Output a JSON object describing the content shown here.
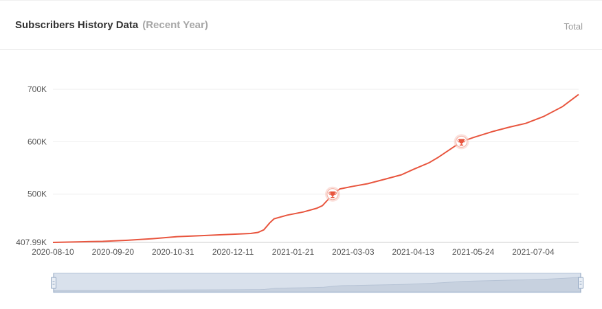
{
  "header": {
    "title": "Subscribers History Data",
    "subtitle": "(Recent Year)",
    "total_link": "Total"
  },
  "colors": {
    "line": "#e8553e",
    "grid": "#eeeeee",
    "axis": "#cccccc",
    "slider_fill": "#d9e1ec",
    "slider_border": "#b3c3d9",
    "marker_halo": "#f7c9c0"
  },
  "icons": {
    "milestone": "trophy-icon"
  },
  "chart_data": {
    "type": "line",
    "xlabel": "",
    "ylabel": "",
    "x_ticks": [
      "2020-08-10",
      "2020-09-20",
      "2020-10-31",
      "2020-12-11",
      "2021-01-21",
      "2021-03-03",
      "2021-04-13",
      "2021-05-24",
      "2021-07-04"
    ],
    "y_ticks": [
      {
        "value": 407990,
        "label": "407.99K"
      },
      {
        "value": 500000,
        "label": "500K"
      },
      {
        "value": 600000,
        "label": "600K"
      },
      {
        "value": 700000,
        "label": "700K"
      }
    ],
    "ylim": [
      407990,
      700000
    ],
    "xlim": [
      "2020-08-10",
      "2021-08-04"
    ],
    "grid": true,
    "series": [
      {
        "points": [
          {
            "x": "2020-08-10",
            "y": 407990
          },
          {
            "x": "2020-08-27",
            "y": 409000
          },
          {
            "x": "2020-09-13",
            "y": 410000
          },
          {
            "x": "2020-09-30",
            "y": 412000
          },
          {
            "x": "2020-10-17",
            "y": 415000
          },
          {
            "x": "2020-11-03",
            "y": 419000
          },
          {
            "x": "2020-11-20",
            "y": 421000
          },
          {
            "x": "2020-12-07",
            "y": 423000
          },
          {
            "x": "2020-12-23",
            "y": 425000
          },
          {
            "x": "2020-12-28",
            "y": 427000
          },
          {
            "x": "2021-01-01",
            "y": 432000
          },
          {
            "x": "2021-01-05",
            "y": 445000
          },
          {
            "x": "2021-01-08",
            "y": 453000
          },
          {
            "x": "2021-01-17",
            "y": 460000
          },
          {
            "x": "2021-01-28",
            "y": 466000
          },
          {
            "x": "2021-02-06",
            "y": 473000
          },
          {
            "x": "2021-02-10",
            "y": 478000
          },
          {
            "x": "2021-02-14",
            "y": 490000
          },
          {
            "x": "2021-02-17",
            "y": 500000
          },
          {
            "x": "2021-02-22",
            "y": 510000
          },
          {
            "x": "2021-03-03",
            "y": 515000
          },
          {
            "x": "2021-03-13",
            "y": 520000
          },
          {
            "x": "2021-03-24",
            "y": 528000
          },
          {
            "x": "2021-04-05",
            "y": 537000
          },
          {
            "x": "2021-04-13",
            "y": 547000
          },
          {
            "x": "2021-04-24",
            "y": 560000
          },
          {
            "x": "2021-04-30",
            "y": 570000
          },
          {
            "x": "2021-05-08",
            "y": 585000
          },
          {
            "x": "2021-05-16",
            "y": 600000
          },
          {
            "x": "2021-05-24",
            "y": 608000
          },
          {
            "x": "2021-06-07",
            "y": 620000
          },
          {
            "x": "2021-06-18",
            "y": 628000
          },
          {
            "x": "2021-06-29",
            "y": 635000
          },
          {
            "x": "2021-07-11",
            "y": 648000
          },
          {
            "x": "2021-07-24",
            "y": 667000
          },
          {
            "x": "2021-08-04",
            "y": 690000
          }
        ]
      }
    ],
    "milestones": [
      {
        "x": "2021-02-17",
        "y": 500000
      },
      {
        "x": "2021-05-16",
        "y": 600000
      }
    ],
    "range_slider": {
      "start": 0,
      "end": 1
    }
  }
}
